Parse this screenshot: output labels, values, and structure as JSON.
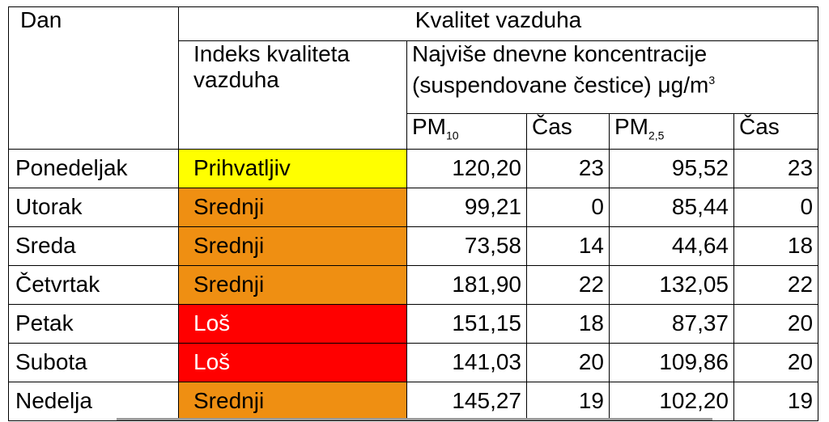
{
  "header": {
    "day": "Dan",
    "group": "Kvalitet vazduha",
    "index": "Indeks kvaliteta vazduha",
    "concentration": {
      "text": "Najviše dnevne koncentracije (suspendovane čestice) μg/m",
      "sup": "3"
    },
    "columns": [
      {
        "text": "PM",
        "sub": "10"
      },
      {
        "text": "Čas"
      },
      {
        "text": "PM",
        "sub": "2,5"
      },
      {
        "text": "Čas"
      }
    ]
  },
  "table": {
    "rows": [
      {
        "day": "Ponedeljak",
        "index": "Prihvatljiv",
        "color": "#ffff00",
        "text_color": "#000000",
        "cells": [
          "120,20",
          "23",
          "95,52",
          "23"
        ]
      },
      {
        "day": "Utorak",
        "index": "Srednji",
        "color": "#ef8f12",
        "text_color": "#000000",
        "cells": [
          "99,21",
          "0",
          "85,44",
          "0"
        ]
      },
      {
        "day": "Sreda",
        "index": "Srednji",
        "color": "#ef8f12",
        "text_color": "#000000",
        "cells": [
          "73,58",
          "14",
          "44,64",
          "18"
        ]
      },
      {
        "day": "Četvrtak",
        "index": "Srednji",
        "color": "#ef8f12",
        "text_color": "#000000",
        "cells": [
          "181,90",
          "22",
          "132,05",
          "22"
        ]
      },
      {
        "day": "Petak",
        "index": "Loš",
        "color": "#ff0000",
        "text_color": "#ffffff",
        "cells": [
          "151,15",
          "18",
          "87,37",
          "20"
        ]
      },
      {
        "day": "Subota",
        "index": "Loš",
        "color": "#ff0000",
        "text_color": "#ffffff",
        "cells": [
          "141,03",
          "20",
          "109,86",
          "20"
        ]
      },
      {
        "day": "Nedelja",
        "index": "Srednji",
        "color": "#ef8f12",
        "text_color": "#000000",
        "cells": [
          "145,27",
          "19",
          "102,20",
          "19"
        ]
      }
    ]
  }
}
